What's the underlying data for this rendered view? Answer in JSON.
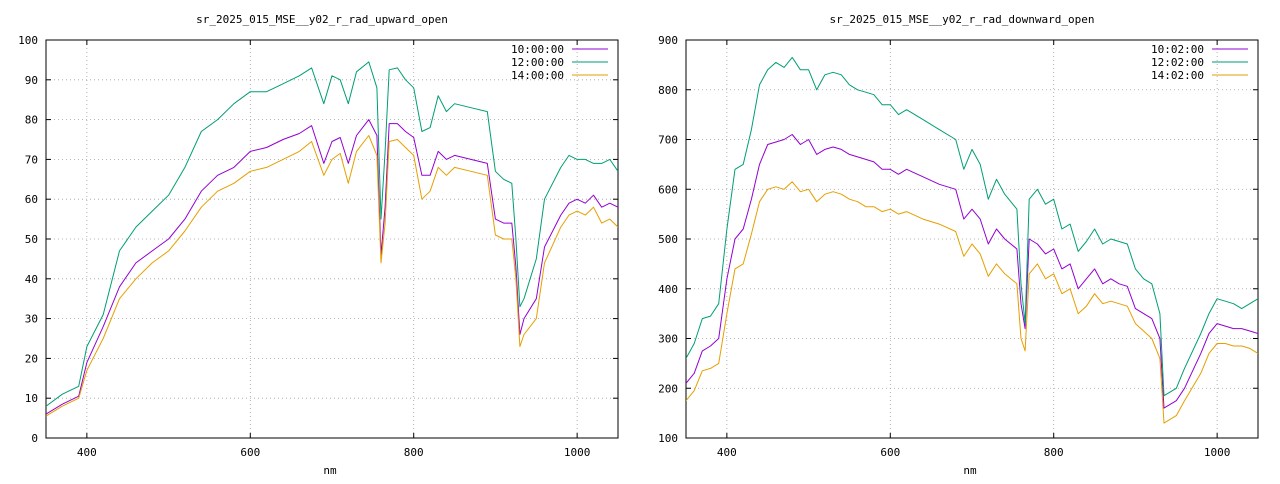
{
  "chart_data": [
    {
      "type": "line",
      "title": "sr_2025_015_MSE__y02_r_rad_upward_open",
      "xlabel": "nm",
      "ylabel": "",
      "xlim": [
        350,
        1050
      ],
      "ylim": [
        0,
        100
      ],
      "xticks": [
        400,
        600,
        800,
        1000
      ],
      "yticks": [
        0,
        10,
        20,
        30,
        40,
        50,
        60,
        70,
        80,
        90,
        100
      ],
      "grid": true,
      "legend": "top-right",
      "series": [
        {
          "name": "10:00:00",
          "color": "#9400d3",
          "x": [
            350,
            370,
            390,
            400,
            420,
            440,
            460,
            480,
            500,
            520,
            540,
            560,
            580,
            600,
            620,
            640,
            660,
            675,
            690,
            700,
            710,
            720,
            730,
            745,
            755,
            760,
            765,
            770,
            780,
            790,
            800,
            810,
            820,
            830,
            840,
            850,
            870,
            890,
            900,
            910,
            920,
            925,
            930,
            935,
            950,
            960,
            980,
            990,
            1000,
            1010,
            1020,
            1030,
            1040,
            1050
          ],
          "values": [
            6,
            8.5,
            10.5,
            19,
            28,
            38,
            44,
            47,
            50,
            55,
            62,
            66,
            68,
            72,
            73,
            75,
            76.5,
            78.5,
            69,
            74.5,
            75.5,
            69,
            76,
            80,
            76,
            46,
            58,
            79,
            79,
            77,
            75.5,
            66,
            66,
            72,
            70,
            71,
            70,
            69,
            55,
            54,
            54,
            43,
            26,
            30,
            35,
            48,
            56,
            59,
            60,
            59,
            61,
            58,
            59,
            58
          ]
        },
        {
          "name": "12:00:00",
          "color": "#009e73",
          "x": [
            350,
            370,
            390,
            400,
            420,
            440,
            460,
            480,
            500,
            520,
            540,
            560,
            580,
            600,
            620,
            640,
            660,
            675,
            690,
            700,
            710,
            720,
            730,
            745,
            755,
            760,
            765,
            770,
            780,
            790,
            800,
            810,
            820,
            830,
            840,
            850,
            870,
            890,
            900,
            910,
            920,
            925,
            930,
            935,
            950,
            960,
            980,
            990,
            1000,
            1010,
            1020,
            1030,
            1040,
            1050
          ],
          "values": [
            8,
            11,
            13,
            23,
            31,
            47,
            53,
            57,
            61,
            68,
            77,
            80,
            84,
            87,
            87,
            89,
            91,
            93,
            84,
            91,
            90,
            84,
            92,
            94.5,
            88,
            55,
            72,
            92.5,
            93,
            90,
            88,
            77,
            78,
            86,
            82,
            84,
            83,
            82,
            67,
            65,
            64,
            50,
            33,
            35,
            45,
            60,
            68,
            71,
            70,
            70,
            69,
            69,
            70,
            67
          ]
        },
        {
          "name": "14:00:00",
          "color": "#e69f00",
          "x": [
            350,
            370,
            390,
            400,
            420,
            440,
            460,
            480,
            500,
            520,
            540,
            560,
            580,
            600,
            620,
            640,
            660,
            675,
            690,
            700,
            710,
            720,
            730,
            745,
            755,
            760,
            765,
            770,
            780,
            790,
            800,
            810,
            820,
            830,
            840,
            850,
            870,
            890,
            900,
            910,
            920,
            925,
            930,
            935,
            950,
            960,
            980,
            990,
            1000,
            1010,
            1020,
            1030,
            1040,
            1050
          ],
          "values": [
            5.5,
            8,
            10,
            17,
            25,
            35,
            40,
            44,
            47,
            52,
            58,
            62,
            64,
            67,
            68,
            70,
            72,
            74.5,
            66,
            70,
            71.5,
            64,
            72,
            76,
            71,
            44,
            54,
            74.5,
            75,
            73,
            71,
            60,
            62,
            68,
            66,
            68,
            67,
            66,
            51,
            50,
            50,
            40,
            23,
            26,
            30,
            44,
            53,
            56,
            57,
            56,
            58,
            54,
            55,
            53
          ]
        }
      ]
    },
    {
      "type": "line",
      "title": "sr_2025_015_MSE__y02_r_rad_downward_open",
      "xlabel": "nm",
      "ylabel": "",
      "xlim": [
        350,
        1050
      ],
      "ylim": [
        100,
        900
      ],
      "xticks": [
        400,
        600,
        800,
        1000
      ],
      "yticks": [
        100,
        200,
        300,
        400,
        500,
        600,
        700,
        800,
        900
      ],
      "grid": true,
      "legend": "top-right",
      "series": [
        {
          "name": "10:02:00",
          "color": "#9400d3",
          "x": [
            350,
            360,
            370,
            380,
            390,
            400,
            410,
            420,
            430,
            440,
            450,
            460,
            470,
            480,
            490,
            500,
            510,
            520,
            530,
            540,
            550,
            560,
            570,
            580,
            590,
            600,
            610,
            620,
            640,
            660,
            680,
            690,
            700,
            710,
            720,
            730,
            740,
            755,
            760,
            765,
            770,
            780,
            790,
            800,
            810,
            820,
            830,
            840,
            850,
            860,
            870,
            880,
            890,
            900,
            910,
            920,
            930,
            935,
            950,
            960,
            980,
            990,
            1000,
            1010,
            1020,
            1030,
            1040,
            1050
          ],
          "values": [
            210,
            230,
            275,
            285,
            300,
            420,
            500,
            520,
            580,
            650,
            690,
            695,
            700,
            710,
            690,
            700,
            670,
            680,
            685,
            680,
            670,
            665,
            660,
            655,
            640,
            640,
            630,
            640,
            625,
            610,
            600,
            540,
            560,
            540,
            490,
            520,
            500,
            480,
            370,
            320,
            500,
            490,
            470,
            480,
            440,
            450,
            400,
            420,
            440,
            410,
            420,
            410,
            405,
            360,
            350,
            340,
            300,
            160,
            175,
            200,
            270,
            310,
            330,
            325,
            320,
            320,
            315,
            310
          ]
        },
        {
          "name": "12:02:00",
          "color": "#009e73",
          "x": [
            350,
            360,
            370,
            380,
            390,
            400,
            410,
            420,
            430,
            440,
            450,
            460,
            470,
            480,
            490,
            500,
            510,
            520,
            530,
            540,
            550,
            560,
            570,
            580,
            590,
            600,
            610,
            620,
            640,
            660,
            680,
            690,
            700,
            710,
            720,
            730,
            740,
            755,
            760,
            765,
            770,
            780,
            790,
            800,
            810,
            820,
            830,
            840,
            850,
            860,
            870,
            880,
            890,
            900,
            910,
            920,
            930,
            935,
            950,
            960,
            980,
            990,
            1000,
            1010,
            1020,
            1030,
            1040,
            1050
          ],
          "values": [
            260,
            290,
            340,
            345,
            370,
            520,
            640,
            650,
            720,
            810,
            840,
            855,
            845,
            865,
            840,
            840,
            800,
            830,
            835,
            830,
            810,
            800,
            795,
            790,
            770,
            770,
            750,
            760,
            740,
            720,
            700,
            640,
            680,
            650,
            580,
            620,
            590,
            560,
            410,
            330,
            580,
            600,
            570,
            580,
            520,
            530,
            475,
            495,
            520,
            490,
            500,
            495,
            490,
            440,
            420,
            410,
            350,
            185,
            200,
            240,
            310,
            350,
            380,
            375,
            370,
            360,
            370,
            380
          ]
        },
        {
          "name": "14:02:00",
          "color": "#e69f00",
          "x": [
            350,
            360,
            370,
            380,
            390,
            400,
            410,
            420,
            430,
            440,
            450,
            460,
            470,
            480,
            490,
            500,
            510,
            520,
            530,
            540,
            550,
            560,
            570,
            580,
            590,
            600,
            610,
            620,
            640,
            660,
            680,
            690,
            700,
            710,
            720,
            730,
            740,
            755,
            760,
            765,
            770,
            780,
            790,
            800,
            810,
            820,
            830,
            840,
            850,
            860,
            870,
            880,
            890,
            900,
            910,
            920,
            930,
            935,
            950,
            960,
            980,
            990,
            1000,
            1010,
            1020,
            1030,
            1040,
            1050
          ],
          "values": [
            175,
            195,
            235,
            240,
            250,
            350,
            440,
            450,
            510,
            575,
            600,
            605,
            600,
            615,
            595,
            600,
            575,
            590,
            595,
            590,
            580,
            575,
            565,
            565,
            555,
            560,
            550,
            555,
            540,
            530,
            515,
            465,
            490,
            470,
            425,
            450,
            430,
            410,
            300,
            275,
            430,
            450,
            420,
            430,
            390,
            400,
            350,
            365,
            390,
            370,
            375,
            370,
            365,
            330,
            315,
            300,
            260,
            130,
            145,
            175,
            230,
            270,
            290,
            290,
            285,
            285,
            280,
            270
          ]
        }
      ]
    }
  ]
}
